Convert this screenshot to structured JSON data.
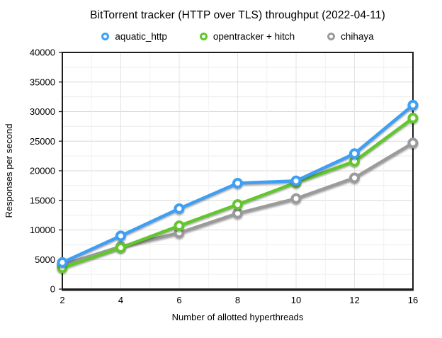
{
  "chart_data": {
    "type": "line",
    "title": "BitTorrent tracker (HTTP over TLS) throughput (2022-04-11)",
    "xlabel": "Number of allotted hyperthreads",
    "ylabel": "Responses per second",
    "x_categories": [
      "2",
      "4",
      "6",
      "8",
      "10",
      "12",
      "16"
    ],
    "ylim": [
      0,
      40000
    ],
    "ytick_step": 5000,
    "yminor_step": 2500,
    "y_tick_labels": [
      "0",
      "5000",
      "10000",
      "15000",
      "20000",
      "25000",
      "30000",
      "35000",
      "40000"
    ],
    "grid": true,
    "legend_position": "top",
    "marker": "open-circle",
    "series": [
      {
        "name": "aquatic_http",
        "color": "#3E9FF4",
        "values": [
          4500,
          9000,
          13600,
          17900,
          18300,
          22900,
          31100
        ]
      },
      {
        "name": "opentracker + hitch",
        "color": "#62C72D",
        "values": [
          3600,
          7000,
          10700,
          14300,
          18000,
          21600,
          28900
        ]
      },
      {
        "name": "chihaya",
        "color": "#9B9B9B",
        "values": [
          4100,
          7200,
          9500,
          12800,
          15300,
          18800,
          24700
        ]
      }
    ]
  }
}
